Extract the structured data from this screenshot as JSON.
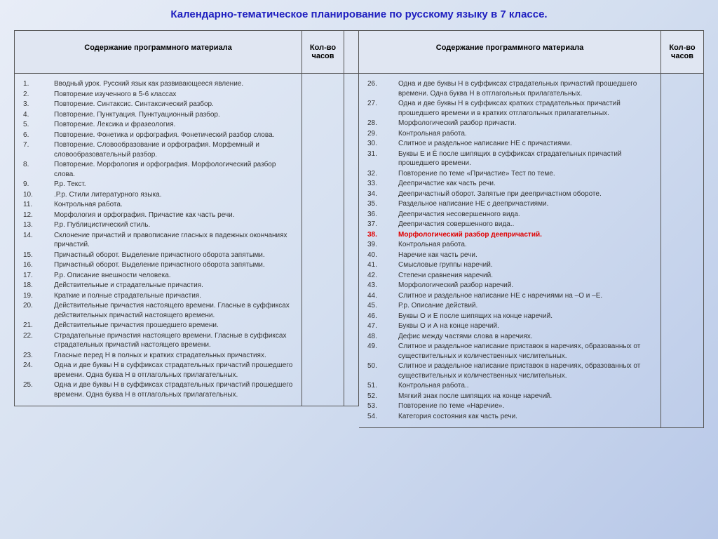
{
  "title": "Календарно-тематическое планирование по русскому языку в 7 классе.",
  "headers": {
    "content": "Содержание программного материала",
    "hours": "Кол-во часов"
  },
  "colors": {
    "title": "#2020c0",
    "highlight": "#e00000",
    "border": "#555555",
    "header_bg": "#e0e6f2"
  },
  "left": [
    {
      "n": 1,
      "text": "Вводный урок. Русский язык как развивающееся явление."
    },
    {
      "n": 2,
      "text": "Повторение изученного в 5-6 классах"
    },
    {
      "n": 3,
      "text": "Повторение. Синтаксис. Синтаксический разбор."
    },
    {
      "n": 4,
      "text": "Повторение. Пунктуация. Пунктуационный разбор."
    },
    {
      "n": 5,
      "text": "Повторение. Лексика и фразеология."
    },
    {
      "n": 6,
      "text": "Повторение. Фонетика и орфография. Фонетический разбор слова."
    },
    {
      "n": 7,
      "text": "Повторение. Словообразование и орфография. Морфемный и словообразовательный разбор."
    },
    {
      "n": 8,
      "text": "Повторение. Морфология и орфография. Морфологический разбор слова."
    },
    {
      "n": 9,
      "text": "Р.р. Текст."
    },
    {
      "n": 10,
      "text": ".Р.р.  Стили литературного языка."
    },
    {
      "n": 11,
      "text": "Контрольная работа."
    },
    {
      "n": 12,
      "text": " Морфология и орфография. Причастие как часть речи."
    },
    {
      "n": 13,
      "text": "Р.р. Публицистический стиль."
    },
    {
      "n": 14,
      "text": " Склонение причастий и правописание гласных в падежных окончаниях причастий."
    },
    {
      "n": 15,
      "text": "Причастный оборот. Выделение причастного оборота запятыми."
    },
    {
      "n": 16,
      "text": "Причастный оборот. Выделение причастного оборота запятыми."
    },
    {
      "n": 17,
      "text": "Р.р. Описание внешности человека."
    },
    {
      "n": 18,
      "text": "Действительные и страдательные причастия."
    },
    {
      "n": 19,
      "text": "Краткие и полные страдательные причастия."
    },
    {
      "n": 20,
      "text": "Действительные причастия настоящего времени. Гласные в суффиксах действительных причастий настоящего времени."
    },
    {
      "n": 21,
      "text": "Действительные причастия прошедшего времени."
    },
    {
      "n": 22,
      "text": "Страдательные причастия настоящего времени. Гласные в суффиксах страдательных причастий настоящего времени."
    },
    {
      "n": 23,
      "text": "Гласные  перед Н в полных и кратких страдательных причастиях."
    },
    {
      "n": 24,
      "text": "Одна и две буквы Н  в суффиксах страдательных причастий прошедшего времени. Одна буква Н в отглагольных прилагательных."
    },
    {
      "n": 25,
      "text": "Одна и две буквы Н в суффиксах страдательных причастий прошедшего времени. Одна буква Н в отглагольных прилагательных."
    }
  ],
  "right": [
    {
      "n": 26,
      "text": "Одна и две буквы Н в суффиксах страдательных причастий прошедшего времени. Одна буква Н в отглагольных прилагательных."
    },
    {
      "n": 27,
      "text": "Одна и две буквы Н в суффиксах кратких страдательных причастий прошедшего времени и в кратких отглагольных прилагательных."
    },
    {
      "n": 28,
      "text": "Морфологический разбор причасти."
    },
    {
      "n": 29,
      "text": "Контрольная работа."
    },
    {
      "n": 30,
      "text": "Слитное и раздельное написание НЕ с причастиями."
    },
    {
      "n": 31,
      "text": "Буквы Е и Ё после шипящих в суффиксах страдательных причастий прошедшего времени."
    },
    {
      "n": 32,
      "text": "Повторение по теме «Причастие» Тест по теме."
    },
    {
      "n": 33,
      "text": "Деепричастие как часть речи."
    },
    {
      "n": 34,
      "text": "Деепричастный оборот. Запятые при деепричастном обороте."
    },
    {
      "n": 35,
      "text": "Раздельное написание НЕ с деепричастиями."
    },
    {
      "n": 36,
      "text": "Деепричастия несовершенного вида."
    },
    {
      "n": 37,
      "text": "Деепричастия совершенного вида.."
    },
    {
      "n": 38,
      "text": "Морфологический разбор деепричастий.",
      "highlight": true
    },
    {
      "n": 39,
      "text": "Контрольная работа."
    },
    {
      "n": 40,
      "text": "Наречие как часть речи."
    },
    {
      "n": 41,
      "text": "Смысловые группы наречий."
    },
    {
      "n": 42,
      "text": "Степени сравнения наречий."
    },
    {
      "n": 43,
      "text": "Морфологический разбор наречий."
    },
    {
      "n": 44,
      "text": "Слитное и раздельное написание НЕ с наречиями на –О и –Е."
    },
    {
      "n": 45,
      "text": "Р.р. Описание действий."
    },
    {
      "n": 46,
      "text": "Буквы О и Е после шипящих на конце наречий."
    },
    {
      "n": 47,
      "text": "Буквы О и А  на конце наречий."
    },
    {
      "n": 48,
      "text": "Дефис между частями слова в наречиях."
    },
    {
      "n": 49,
      "text": "Слитное и раздельное написание приставок в наречиях, образованных от существительных и количественных числительных."
    },
    {
      "n": 50,
      "text": "Слитное и раздельное написание приставок в наречиях, образованных от существительных и количественных числительных."
    },
    {
      "n": 51,
      "text": "Контрольная работа.."
    },
    {
      "n": 52,
      "text": "Мягкий знак после шипящих на конце наречий."
    },
    {
      "n": 53,
      "text": "Повторение по теме «Наречие»."
    },
    {
      "n": 54,
      "text": "Категория состояния как часть речи."
    }
  ]
}
